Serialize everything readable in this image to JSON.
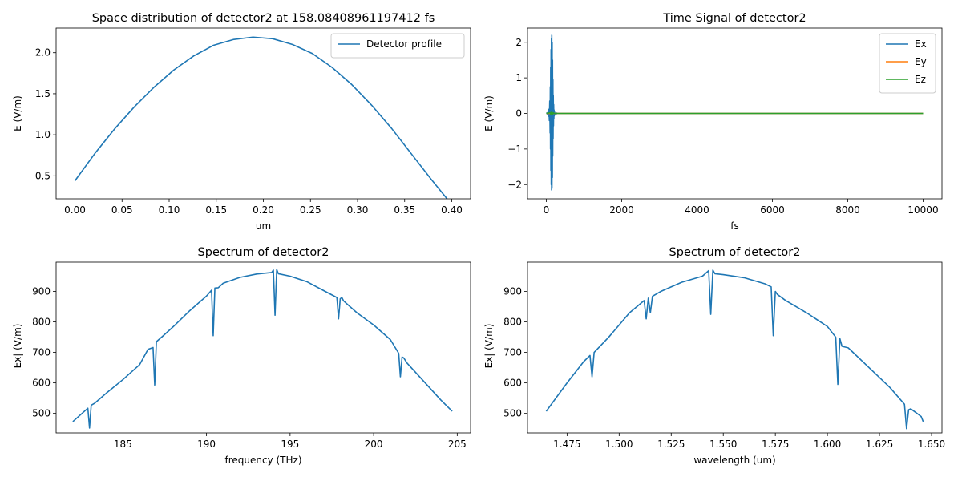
{
  "chart_data": [
    {
      "type": "line",
      "title": "Space distribution of detector2 at 158.08408961197412 fs",
      "xlabel": "um",
      "ylabel": "E (V/m)",
      "xlim": [
        -0.02,
        0.42
      ],
      "ylim": [
        0.22,
        2.3
      ],
      "xticks": [
        0.0,
        0.05,
        0.1,
        0.15,
        0.2,
        0.25,
        0.3,
        0.35,
        0.4
      ],
      "xtick_labels": [
        "0.00",
        "0.05",
        "0.10",
        "0.15",
        "0.20",
        "0.25",
        "0.30",
        "0.35",
        "0.40"
      ],
      "yticks": [
        0.5,
        1.0,
        1.5,
        2.0
      ],
      "ytick_labels": [
        "0.5",
        "1.0",
        "1.5",
        "2.0"
      ],
      "legend": "upper right",
      "series": [
        {
          "name": "Detector profile",
          "color": "#1f77b4",
          "x": [
            0.0,
            0.021,
            0.042,
            0.063,
            0.084,
            0.105,
            0.126,
            0.147,
            0.168,
            0.189,
            0.21,
            0.231,
            0.252,
            0.273,
            0.294,
            0.315,
            0.336,
            0.357,
            0.378,
            0.4
          ],
          "values": [
            0.44,
            0.77,
            1.07,
            1.34,
            1.58,
            1.79,
            1.96,
            2.09,
            2.16,
            2.19,
            2.17,
            2.1,
            1.99,
            1.82,
            1.61,
            1.36,
            1.08,
            0.77,
            0.46,
            0.15
          ]
        }
      ]
    },
    {
      "type": "line",
      "title": "Time Signal of detector2",
      "xlabel": "fs",
      "ylabel": "E (V/m)",
      "xlim": [
        -500,
        10500
      ],
      "ylim": [
        -2.4,
        2.4
      ],
      "xticks": [
        0,
        2000,
        4000,
        6000,
        8000,
        10000
      ],
      "xtick_labels": [
        "0",
        "2000",
        "4000",
        "6000",
        "8000",
        "10000"
      ],
      "yticks": [
        -2,
        -1,
        0,
        1,
        2
      ],
      "ytick_labels": [
        "−2",
        "−1",
        "0",
        "1",
        "2"
      ],
      "legend": "upper right",
      "series": [
        {
          "name": "Ex",
          "color": "#1f77b4",
          "x": [
            0,
            10,
            20,
            30,
            40,
            50,
            60,
            70,
            80,
            90,
            100,
            105,
            110,
            115,
            120,
            125,
            130,
            135,
            140,
            145,
            150,
            155,
            160,
            165,
            170,
            175,
            180,
            185,
            190,
            195,
            200,
            205,
            210,
            215,
            220,
            225,
            230,
            240,
            250,
            260,
            270,
            280,
            290,
            300,
            320,
            350,
            400,
            600,
            1000,
            2000,
            4000,
            6000,
            8000,
            10000
          ],
          "values": [
            0,
            0.01,
            -0.01,
            0.02,
            -0.03,
            0.05,
            -0.08,
            0.12,
            -0.2,
            0.35,
            -0.55,
            0.75,
            -1.0,
            1.3,
            -1.6,
            1.8,
            -2.0,
            2.1,
            -2.15,
            2.2,
            -2.1,
            2.0,
            -1.8,
            1.5,
            -1.2,
            0.95,
            -0.7,
            0.5,
            -0.35,
            0.25,
            -0.15,
            0.1,
            -0.07,
            0.05,
            -0.03,
            0.02,
            -0.01,
            0.01,
            -0.01,
            0.01,
            -0.01,
            0.01,
            0,
            0,
            0,
            0,
            0,
            0,
            0,
            0,
            0,
            0,
            0,
            0
          ]
        },
        {
          "name": "Ey",
          "color": "#ff7f0e",
          "x": [
            0,
            1000,
            2000,
            3000,
            4000,
            5000,
            6000,
            7000,
            8000,
            9000,
            10000
          ],
          "values": [
            0,
            0,
            0,
            0,
            0,
            0,
            0,
            0,
            0,
            0,
            0
          ]
        },
        {
          "name": "Ez",
          "color": "#2ca02c",
          "x": [
            0,
            100,
            120,
            140,
            160,
            180,
            200,
            1000,
            2000,
            4000,
            6000,
            8000,
            10000
          ],
          "values": [
            0,
            0.02,
            -0.03,
            0.04,
            -0.03,
            0.02,
            0,
            0,
            0,
            0,
            0,
            0,
            0
          ]
        }
      ]
    },
    {
      "type": "line",
      "title": "Spectrum of detector2",
      "xlabel": "frequency (THz)",
      "ylabel": "|Ex| (V/m)",
      "xlim": [
        181.0,
        205.8
      ],
      "ylim": [
        436,
        996
      ],
      "xticks": [
        185,
        190,
        195,
        200,
        205
      ],
      "xtick_labels": [
        "185",
        "190",
        "195",
        "200",
        "205"
      ],
      "yticks": [
        500,
        600,
        700,
        800,
        900
      ],
      "ytick_labels": [
        "500",
        "600",
        "700",
        "800",
        "900"
      ],
      "series": [
        {
          "name": "",
          "color": "#1f77b4",
          "x": [
            182.0,
            182.9,
            183.0,
            183.1,
            183.3,
            184.0,
            185.0,
            186.0,
            186.5,
            186.8,
            186.9,
            187.0,
            187.5,
            188.0,
            189.0,
            190.0,
            190.3,
            190.4,
            190.5,
            190.7,
            191.0,
            192.0,
            193.0,
            193.9,
            194.0,
            194.1,
            194.2,
            194.3,
            195.0,
            196.0,
            197.0,
            197.8,
            197.9,
            198.0,
            198.1,
            198.2,
            199.0,
            200.0,
            201.0,
            201.5,
            201.6,
            201.7,
            201.8,
            202.0,
            203.0,
            204.0,
            204.7
          ],
          "values": [
            473,
            517,
            452,
            527,
            533,
            566,
            611,
            660,
            710,
            716,
            593,
            735,
            759,
            784,
            837,
            885,
            904,
            755,
            911,
            912,
            927,
            946,
            957,
            962,
            970,
            822,
            972,
            958,
            950,
            932,
            903,
            880,
            810,
            876,
            880,
            869,
            830,
            790,
            742,
            697,
            620,
            685,
            682,
            665,
            605,
            545,
            507
          ]
        }
      ]
    },
    {
      "type": "line",
      "title": "Spectrum of detector2",
      "xlabel": "wavelength (um)",
      "ylabel": "|Ex| (V/m)",
      "xlim": [
        1.456,
        1.655
      ],
      "ylim": [
        436,
        996
      ],
      "xticks": [
        1.475,
        1.5,
        1.525,
        1.55,
        1.575,
        1.6,
        1.625,
        1.65
      ],
      "xtick_labels": [
        "1.475",
        "1.500",
        "1.525",
        "1.550",
        "1.575",
        "1.600",
        "1.625",
        "1.650"
      ],
      "yticks": [
        500,
        600,
        700,
        800,
        900
      ],
      "ytick_labels": [
        "500",
        "600",
        "700",
        "800",
        "900"
      ],
      "series": [
        {
          "name": "",
          "color": "#1f77b4",
          "x": [
            1.465,
            1.475,
            1.483,
            1.486,
            1.487,
            1.488,
            1.495,
            1.5,
            1.505,
            1.512,
            1.513,
            1.514,
            1.515,
            1.516,
            1.52,
            1.53,
            1.54,
            1.543,
            1.544,
            1.545,
            1.546,
            1.55,
            1.56,
            1.57,
            1.573,
            1.574,
            1.575,
            1.576,
            1.58,
            1.59,
            1.6,
            1.604,
            1.605,
            1.606,
            1.607,
            1.61,
            1.62,
            1.63,
            1.637,
            1.638,
            1.639,
            1.64,
            1.645,
            1.646
          ],
          "values": [
            507,
            600,
            670,
            690,
            620,
            700,
            750,
            790,
            830,
            870,
            810,
            878,
            830,
            884,
            900,
            930,
            950,
            968,
            825,
            970,
            958,
            955,
            945,
            925,
            915,
            755,
            900,
            890,
            870,
            830,
            785,
            750,
            595,
            745,
            720,
            715,
            650,
            585,
            530,
            450,
            512,
            515,
            490,
            473
          ]
        }
      ]
    }
  ]
}
